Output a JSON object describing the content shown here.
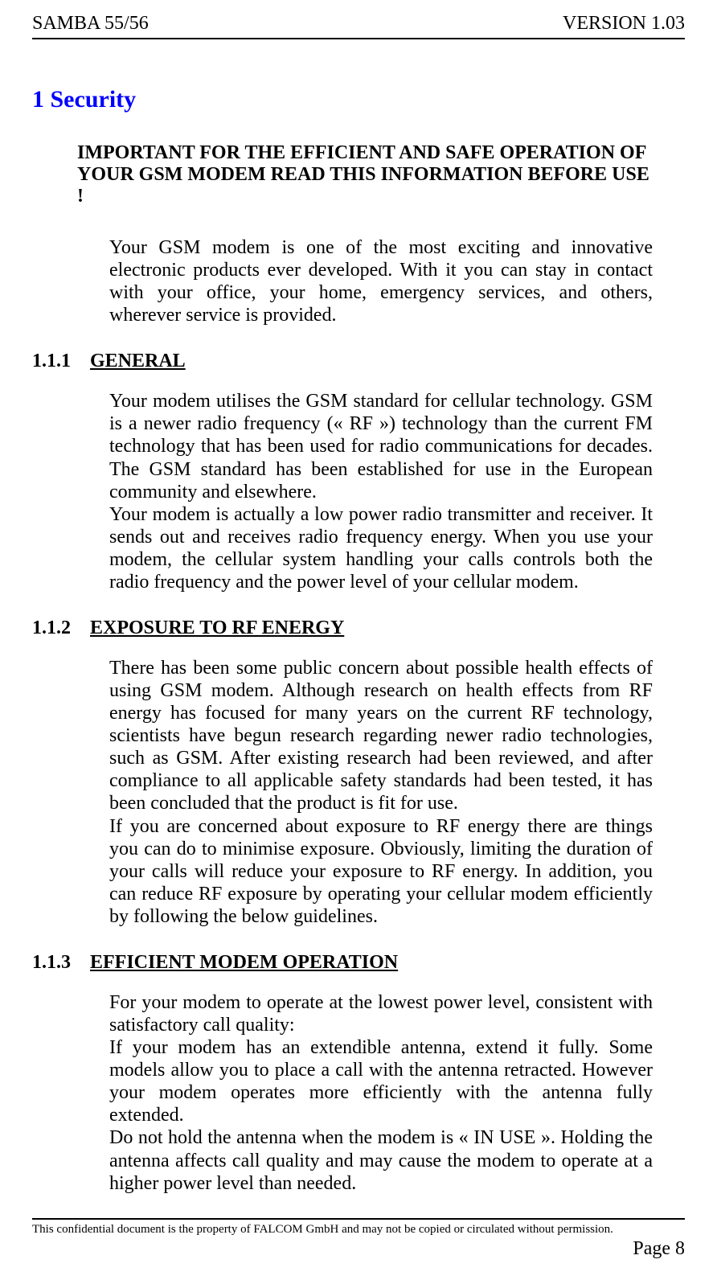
{
  "header": {
    "left": "SAMBA 55/56",
    "right": "VERSION 1.03"
  },
  "chapter": {
    "title": "1   Security"
  },
  "important": {
    "line1": "IMPORTANT FOR THE EFFICIENT AND SAFE OPERATION OF YOUR GSM MODEM READ THIS INFORMATION BEFORE USE !"
  },
  "intro": {
    "text": "Your GSM modem is one of the most exciting and innovative electronic products ever developed. With it you can stay in contact with your office, your home, emergency services, and others, wherever service is provided."
  },
  "sections": {
    "s1": {
      "number": "1.1.1",
      "title": "GENERAL",
      "p1": "Your modem utilises the GSM standard for cellular technology. GSM is a newer radio frequency (« RF ») technology than the current FM technology that has been used for radio communications for decades. The GSM standard has been established for use in the European community and elsewhere.",
      "p2": "Your modem is actually a low power radio transmitter and receiver. It sends out and receives radio frequency energy. When you use your modem, the cellular system handling your calls controls both the radio frequency and the power level of your cellular modem."
    },
    "s2": {
      "number": "1.1.2",
      "title": "EXPOSURE TO RF ENERGY",
      "p1": "There has been some public concern about possible health effects of using GSM modem. Although research on health effects from RF energy has focused for many years on the current RF technology, scientists have begun research regarding newer radio technologies, such as GSM. After existing research had been reviewed, and after compliance to all applicable safety standards had been tested, it has been concluded that the product is fit for use.",
      "p2": "If you are concerned about exposure to RF energy there are things you can do to minimise exposure. Obviously, limiting the duration of your calls will reduce your exposure to RF energy. In addition, you can reduce RF exposure by operating your cellular modem efficiently by following the below guidelines."
    },
    "s3": {
      "number": "1.1.3",
      "title": "EFFICIENT MODEM OPERATION",
      "p1": "For your modem to operate at the lowest power level, consistent with satisfactory call quality:",
      "p2": "If your modem has an extendible antenna, extend it fully. Some models allow you to place a call with the antenna retracted. However your modem operates more efficiently with the antenna fully extended.",
      "p3": "Do not hold the antenna when the modem is « IN USE ». Holding the antenna affects call quality and may cause the modem to operate at a higher power level than needed."
    }
  },
  "footer": {
    "text": "This confidential document is the property of FALCOM GmbH and may not be copied or circulated without permission.",
    "page": "Page 8"
  }
}
